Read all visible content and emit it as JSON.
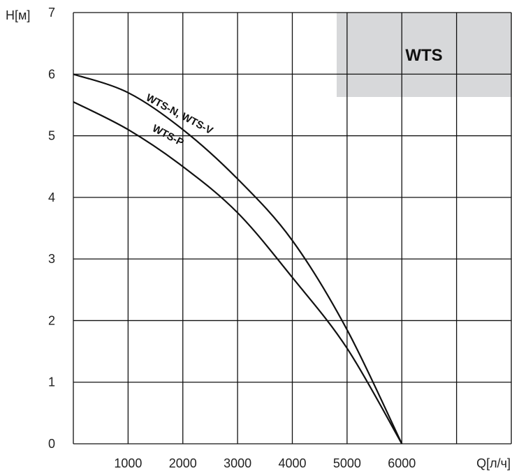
{
  "chart_data": {
    "type": "line",
    "badge": "WTS",
    "badge_color": "#d7d8da",
    "ylabel": "H[м]",
    "xlabel": "Q[л/ч]",
    "xlim": [
      0,
      8000
    ],
    "ylim": [
      0,
      7
    ],
    "x_ticks": [
      1000,
      2000,
      3000,
      4000,
      5000,
      6000
    ],
    "y_ticks": [
      0,
      1,
      2,
      3,
      4,
      5,
      6,
      7
    ],
    "grid": true,
    "line_color": "#111111",
    "series": [
      {
        "name": "WTS-N, WTS-V",
        "x": [
          0,
          1000,
          2000,
          3000,
          4000,
          5000,
          6000
        ],
        "y": [
          6.0,
          5.7,
          5.1,
          4.3,
          3.3,
          1.85,
          0.0
        ]
      },
      {
        "name": "WTS-P",
        "x": [
          0,
          1000,
          2000,
          3000,
          4000,
          5000,
          6000
        ],
        "y": [
          5.55,
          5.1,
          4.5,
          3.75,
          2.7,
          1.55,
          0.0
        ]
      }
    ]
  }
}
